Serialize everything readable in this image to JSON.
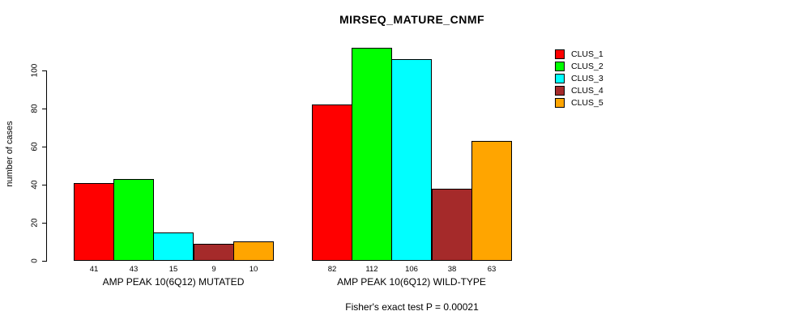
{
  "title": "MIRSEQ_MATURE_CNMF",
  "caption": "Fisher's exact test P = 0.00021",
  "colors": {
    "foreground": "#000000",
    "background": "#ffffff"
  },
  "chart_data": {
    "type": "bar",
    "title": "MIRSEQ_MATURE_CNMF",
    "xlabel": "",
    "ylabel": "number of cases",
    "ylim": [
      0,
      117
    ],
    "yticks": [
      0,
      20,
      40,
      60,
      80,
      100
    ],
    "grid": false,
    "legend_position": "right",
    "bar_value_labels": true,
    "categories": [
      "AMP PEAK 10(6Q12) MUTATED",
      "AMP PEAK 10(6Q12) WILD-TYPE"
    ],
    "series": [
      {
        "name": "CLUS_1",
        "color": "#FF0000",
        "values": [
          41,
          82
        ]
      },
      {
        "name": "CLUS_2",
        "color": "#00FF00",
        "values": [
          43,
          112
        ]
      },
      {
        "name": "CLUS_3",
        "color": "#00FFFF",
        "values": [
          15,
          106
        ]
      },
      {
        "name": "CLUS_4",
        "color": "#A52A2A",
        "values": [
          9,
          38
        ]
      },
      {
        "name": "CLUS_5",
        "color": "#FFA500",
        "values": [
          10,
          63
        ]
      }
    ],
    "annotation": "Fisher's exact test P = 0.00021"
  }
}
